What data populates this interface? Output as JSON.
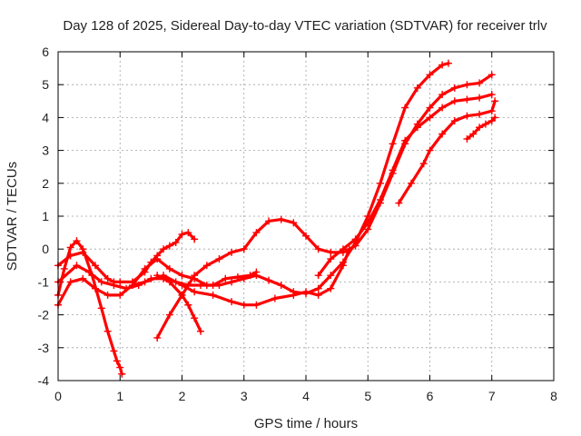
{
  "chart_data": {
    "type": "line",
    "title": "Day 128 of 2025, Sidereal Day-to-day VTEC variation (SDTVAR) for receiver trlv",
    "xlabel": "GPS time / hours",
    "ylabel": "SDTVAR / TECUs",
    "xlim": [
      0,
      8
    ],
    "ylim": [
      -4,
      6
    ],
    "xticks": [
      "0",
      "1",
      "2",
      "3",
      "4",
      "5",
      "6",
      "7",
      "8"
    ],
    "yticks": [
      "-4",
      "-3",
      "-2",
      "-1",
      "0",
      "1",
      "2",
      "3",
      "4",
      "5",
      "6"
    ],
    "grid": true,
    "marker": "plus",
    "color": "#ff0000",
    "series": [
      {
        "x": [
          0.0,
          0.1,
          0.2,
          0.3,
          0.4,
          0.55,
          0.7,
          0.8,
          0.9,
          0.95,
          1.0,
          1.03
        ],
        "y": [
          -1.4,
          -0.6,
          0.05,
          0.25,
          0.0,
          -0.8,
          -1.8,
          -2.5,
          -3.1,
          -3.4,
          -3.6,
          -3.8
        ]
      },
      {
        "x": [
          0.0,
          0.2,
          0.4,
          0.6,
          0.8,
          0.9,
          1.0,
          1.2,
          1.4,
          1.5,
          1.6,
          1.7,
          1.8,
          1.9,
          2.0,
          2.1,
          2.2
        ],
        "y": [
          -0.5,
          -0.2,
          -0.1,
          -0.5,
          -0.9,
          -1.0,
          -1.0,
          -1.0,
          -0.7,
          -0.4,
          -0.2,
          0.0,
          0.1,
          0.2,
          0.45,
          0.5,
          0.3
        ]
      },
      {
        "x": [
          0.0,
          0.2,
          0.4,
          0.6,
          0.8,
          1.0,
          1.2,
          1.4,
          1.7,
          2.0,
          2.2,
          2.5,
          2.8,
          3.0,
          3.2,
          3.5,
          3.8,
          4.0,
          4.2,
          4.4,
          4.6,
          4.7
        ],
        "y": [
          -1.7,
          -1.0,
          -0.9,
          -1.2,
          -1.4,
          -1.4,
          -1.1,
          -1.0,
          -0.8,
          -1.1,
          -1.3,
          -1.4,
          -1.6,
          -1.7,
          -1.7,
          -1.5,
          -1.4,
          -1.3,
          -1.4,
          -1.2,
          -0.5,
          0.0
        ]
      },
      {
        "x": [
          0.0,
          0.3,
          0.5,
          0.7,
          0.9,
          1.1,
          1.3,
          1.5,
          1.7,
          1.9,
          2.1,
          2.3,
          2.5,
          2.7,
          2.9,
          3.1,
          3.2
        ],
        "y": [
          -1.0,
          -0.5,
          -0.7,
          -1.0,
          -1.1,
          -1.2,
          -1.1,
          -0.9,
          -0.9,
          -1.0,
          -1.1,
          -1.1,
          -1.1,
          -0.9,
          -0.85,
          -0.8,
          -0.7
        ]
      },
      {
        "x": [
          1.2,
          1.4,
          1.6,
          1.8,
          2.0,
          2.2,
          2.4,
          2.6,
          2.8,
          3.0,
          3.2,
          3.4,
          3.6,
          3.8,
          4.0,
          4.2,
          4.4,
          4.6,
          4.8,
          5.0,
          5.2,
          5.4,
          5.6,
          5.8,
          6.0,
          6.2,
          6.3
        ],
        "y": [
          -1.1,
          -0.6,
          -0.3,
          -0.6,
          -0.8,
          -0.9,
          -1.1,
          -1.1,
          -1.0,
          -0.9,
          -0.8,
          -0.95,
          -1.1,
          -1.3,
          -1.35,
          -1.2,
          -0.8,
          -0.4,
          0.2,
          1.0,
          2.0,
          3.2,
          4.3,
          4.9,
          5.3,
          5.6,
          5.65
        ]
      },
      {
        "x": [
          1.6,
          1.8,
          2.0,
          2.2,
          2.4,
          2.6,
          2.8,
          3.0,
          3.2,
          3.4,
          3.6,
          3.8,
          4.0,
          4.2,
          4.4,
          4.6,
          4.8,
          5.0,
          5.2,
          5.4,
          5.6,
          5.8,
          6.0,
          6.2,
          6.4,
          6.6,
          6.8,
          7.0
        ],
        "y": [
          -2.7,
          -2.0,
          -1.4,
          -0.8,
          -0.5,
          -0.3,
          -0.1,
          0.0,
          0.5,
          0.85,
          0.9,
          0.8,
          0.4,
          0.0,
          -0.1,
          -0.1,
          0.1,
          0.6,
          1.4,
          2.3,
          3.2,
          3.8,
          4.3,
          4.7,
          4.9,
          5.0,
          5.05,
          5.3
        ]
      },
      {
        "x": [
          1.6,
          1.8,
          2.0,
          2.1,
          2.2,
          2.3
        ],
        "y": [
          -0.8,
          -1.0,
          -1.4,
          -1.7,
          -2.1,
          -2.5
        ]
      },
      {
        "x": [
          4.2,
          4.4,
          4.6,
          4.8,
          5.0,
          5.2,
          5.4,
          5.6,
          5.8,
          6.0,
          6.2,
          6.4,
          6.6,
          6.8,
          7.0
        ],
        "y": [
          -0.8,
          -0.3,
          0.0,
          0.3,
          0.8,
          1.5,
          2.4,
          3.3,
          3.7,
          4.0,
          4.3,
          4.5,
          4.55,
          4.6,
          4.7
        ]
      },
      {
        "x": [
          5.5,
          5.7,
          5.9,
          6.0,
          6.2,
          6.4,
          6.6,
          6.8,
          7.0,
          7.05
        ],
        "y": [
          1.4,
          2.0,
          2.6,
          3.0,
          3.5,
          3.9,
          4.05,
          4.1,
          4.2,
          4.5
        ]
      },
      {
        "x": [
          6.6,
          6.7,
          6.8,
          6.9,
          7.0,
          7.05
        ],
        "y": [
          3.35,
          3.5,
          3.7,
          3.8,
          3.9,
          4.0
        ]
      }
    ]
  }
}
